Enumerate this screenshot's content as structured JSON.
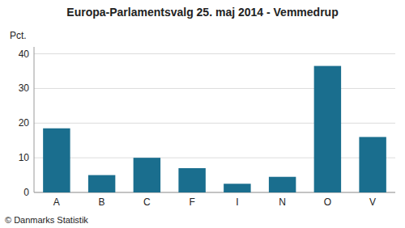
{
  "chart_data": {
    "type": "bar",
    "title": "Europa-Parlamentsvalg 25. maj 2014 - Vemmedrup",
    "ylabel": "Pct.",
    "footer": "© Danmarks Statistik",
    "categories": [
      "A",
      "B",
      "C",
      "F",
      "I",
      "N",
      "O",
      "V"
    ],
    "values": [
      18.5,
      5.0,
      10.0,
      7.0,
      2.5,
      4.5,
      36.5,
      16.0
    ],
    "color": "#1a6e8e",
    "ylim": [
      0,
      42
    ],
    "yticks": [
      0,
      10,
      20,
      30,
      40
    ],
    "grid": true
  }
}
